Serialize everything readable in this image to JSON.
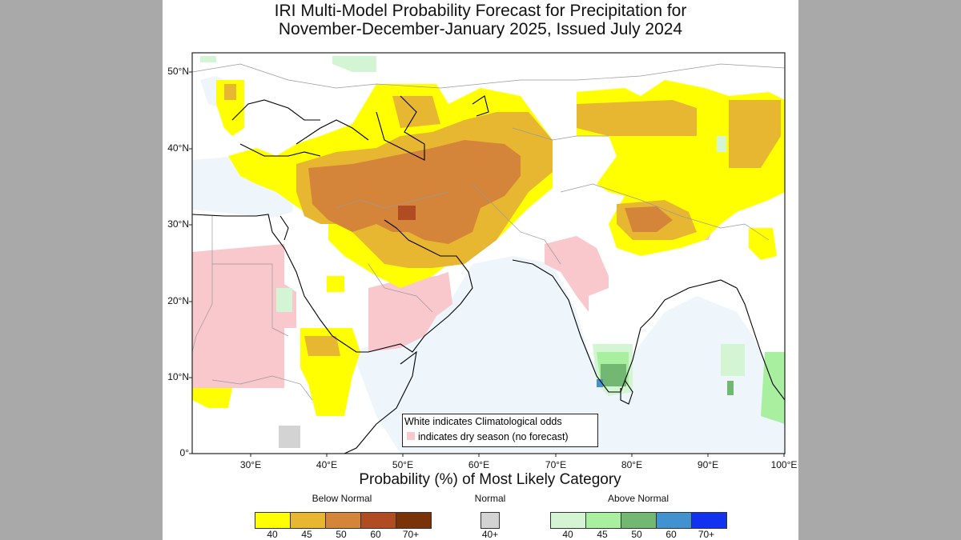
{
  "title": {
    "line1": "IRI Multi-Model Probability Forecast for Precipitation for",
    "line2": "November-December-January 2025, Issued July 2024"
  },
  "axes": {
    "lat_labels": [
      "50°N",
      "40°N",
      "30°N",
      "20°N",
      "10°N",
      "0°"
    ],
    "lon_labels": [
      "30°E",
      "40°E",
      "50°E",
      "60°E",
      "70°E",
      "80°E",
      "90°E",
      "100°E"
    ]
  },
  "note": {
    "line1": "White indicates Climatological odds",
    "line2": "indicates dry season (no forecast)"
  },
  "legend": {
    "title": "Probability (%) of Most Likely Category",
    "below_normal": {
      "label": "Below Normal",
      "ticks": [
        "40",
        "45",
        "50",
        "60",
        "70+"
      ],
      "colors": [
        "#ffff00",
        "#e8b732",
        "#d4853a",
        "#b04b22",
        "#7a3208"
      ]
    },
    "normal": {
      "label": "Normal",
      "ticks": [
        "40+"
      ],
      "colors": [
        "#d3d3d3"
      ]
    },
    "above_normal": {
      "label": "Above Normal",
      "ticks": [
        "40",
        "45",
        "50",
        "60",
        "70+"
      ],
      "colors": [
        "#d4f5d4",
        "#a8f0a0",
        "#72b872",
        "#4392d0",
        "#1232f0"
      ]
    }
  },
  "colors": {
    "dry_season": "#f8c8cc",
    "ocean": "#eef5fb"
  }
}
